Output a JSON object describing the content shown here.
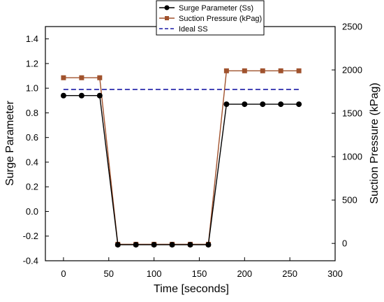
{
  "chart_data": {
    "type": "line",
    "xlabel": "Time [seconds]",
    "ylabel_left": "Surge Parameter",
    "ylabel_right": "Suction Pressure (kPag)",
    "xlim": [
      -20,
      300
    ],
    "ylim_left": [
      -0.4,
      1.5
    ],
    "ylim_right": [
      -200,
      2500
    ],
    "x_ticks": [
      "0",
      "50",
      "100",
      "150",
      "200",
      "250",
      "300"
    ],
    "y_left_ticks": [
      "-0.4",
      "-0.2",
      "0.0",
      "0.2",
      "0.4",
      "0.6",
      "0.8",
      "1.0",
      "1.2",
      "1.4"
    ],
    "y_right_ticks": [
      "0",
      "500",
      "1000",
      "1500",
      "2000",
      "2500"
    ],
    "legend_position": "top",
    "grid": false,
    "series": [
      {
        "name": "Surge Parameter (Ss)",
        "axis": "left",
        "color": "#000000",
        "marker": "circle",
        "x": [
          0,
          20,
          40,
          60,
          80,
          100,
          120,
          140,
          160,
          180,
          200,
          220,
          240,
          260
        ],
        "y": [
          0.94,
          0.94,
          0.94,
          -0.27,
          -0.27,
          -0.27,
          -0.27,
          -0.27,
          -0.27,
          0.87,
          0.87,
          0.87,
          0.87,
          0.87
        ]
      },
      {
        "name": "Suction Pressure (kPag)",
        "axis": "right",
        "color": "#a0522d",
        "marker": "square",
        "x": [
          0,
          20,
          40,
          60,
          80,
          100,
          120,
          140,
          160,
          180,
          200,
          220,
          240,
          260
        ],
        "y": [
          1910,
          1910,
          1910,
          -10,
          -10,
          -10,
          -10,
          -10,
          -10,
          1990,
          1990,
          1990,
          1990,
          1990
        ]
      },
      {
        "name": "Ideal SS",
        "axis": "left",
        "color": "#1a1aa6",
        "style": "dashed",
        "x": [
          0,
          260
        ],
        "y": [
          0.99,
          0.99
        ]
      }
    ]
  }
}
